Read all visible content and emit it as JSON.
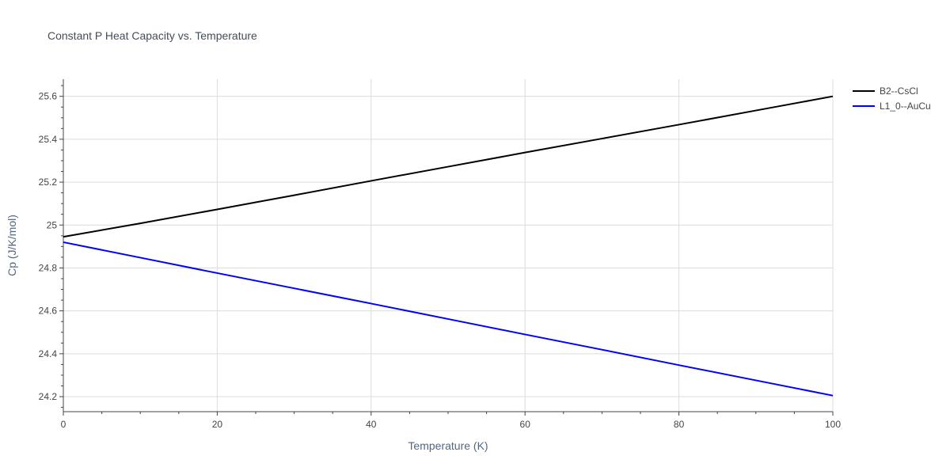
{
  "chart_data": {
    "type": "line",
    "title": "Constant P Heat Capacity vs. Temperature",
    "xlabel": "Temperature (K)",
    "ylabel": "Cp (J/K/mol)",
    "xlim": [
      0,
      100
    ],
    "ylim": [
      24.13,
      25.68
    ],
    "x_ticks": [
      0,
      20,
      40,
      60,
      80,
      100
    ],
    "x_tick_labels": [
      "0",
      "20",
      "40",
      "60",
      "80",
      "100"
    ],
    "y_ticks": [
      24.2,
      24.4,
      24.6,
      24.8,
      25.0,
      25.2,
      25.4,
      25.6
    ],
    "y_tick_labels": [
      "24.2",
      "24.4",
      "24.6",
      "24.8",
      "25",
      "25.2",
      "25.4",
      "25.6"
    ],
    "grid": true,
    "legend_position": "top-right",
    "series": [
      {
        "name": "B2--CsCl",
        "color": "#000000",
        "x": [
          0,
          10,
          20,
          30,
          40,
          50,
          60,
          70,
          80,
          90,
          100
        ],
        "y": [
          24.945,
          25.008,
          25.073,
          25.139,
          25.206,
          25.272,
          25.338,
          25.403,
          25.468,
          25.534,
          25.6
        ]
      },
      {
        "name": "L1_0--AuCu",
        "color": "#0000ff",
        "x": [
          0,
          10,
          20,
          30,
          40,
          50,
          60,
          70,
          80,
          90,
          100
        ],
        "y": [
          24.92,
          24.848,
          24.776,
          24.705,
          24.634,
          24.562,
          24.49,
          24.419,
          24.347,
          24.276,
          24.205
        ]
      }
    ]
  }
}
